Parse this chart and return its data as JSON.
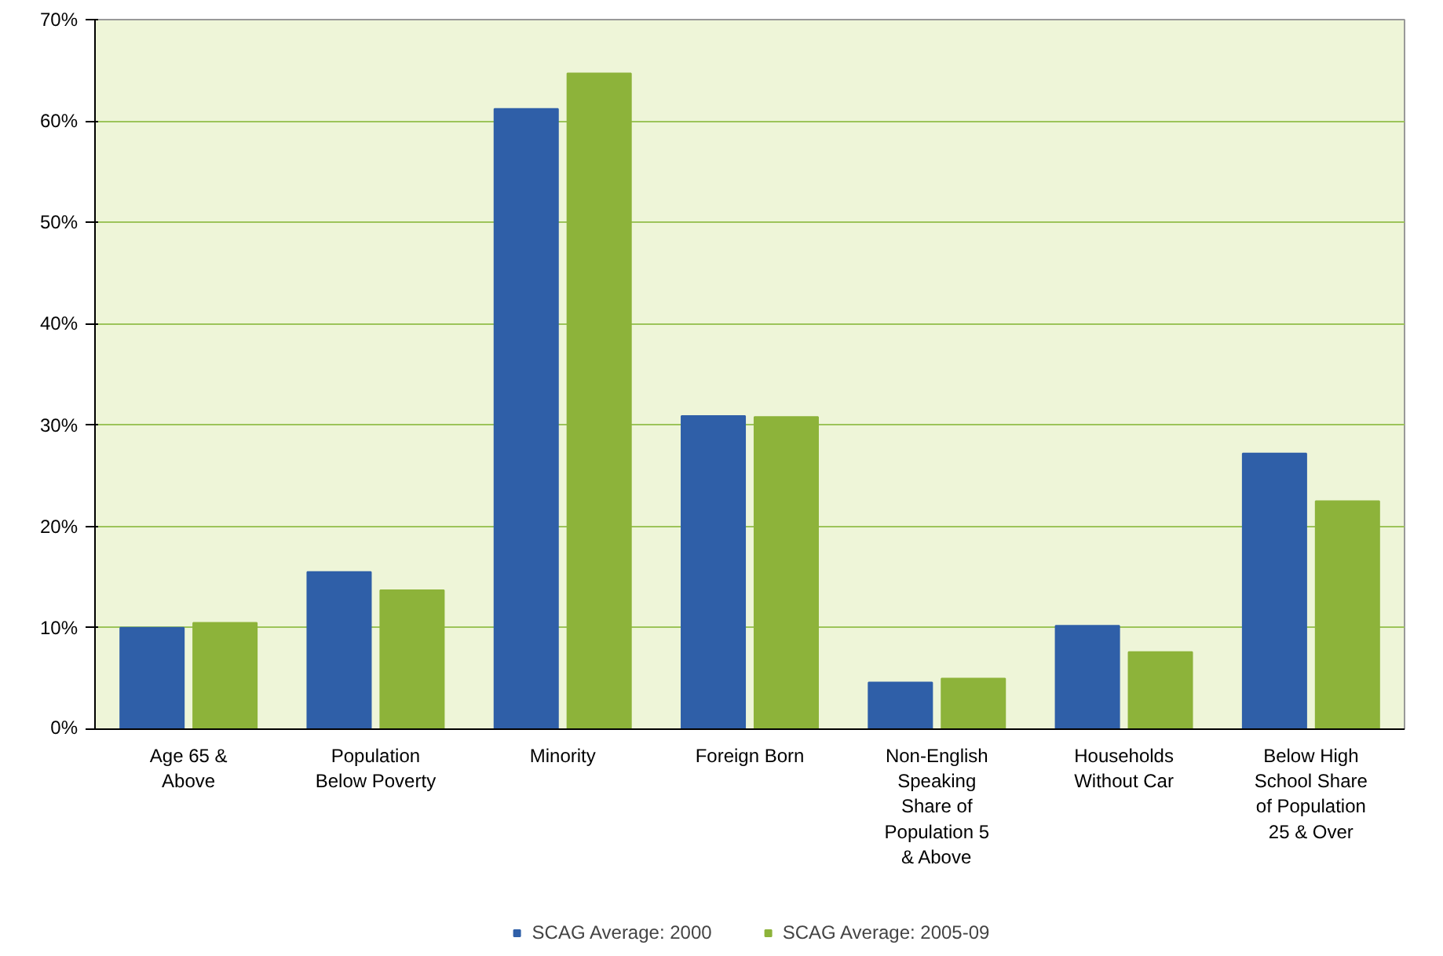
{
  "chart_data": {
    "type": "bar",
    "categories": [
      "Age 65 &\nAbove",
      "Population\nBelow Poverty",
      "Minority",
      "Foreign Born",
      "Non-English\nSpeaking\nShare of\nPopulation 5\n& Above",
      "Households\nWithout Car",
      "Below High\nSchool Share\nof Population\n25 & Over"
    ],
    "series": [
      {
        "name": "SCAG Average: 2000",
        "color": "#2f5fa8",
        "values": [
          10.0,
          15.5,
          61.2,
          30.9,
          4.6,
          10.2,
          27.2
        ]
      },
      {
        "name": "SCAG Average: 2005-09",
        "color": "#8db33a",
        "values": [
          10.5,
          13.7,
          64.7,
          30.8,
          5.0,
          7.6,
          22.5
        ]
      }
    ],
    "ylim": [
      0,
      70
    ],
    "yticks": [
      {
        "value": 0,
        "label": "0%"
      },
      {
        "value": 10,
        "label": "10%"
      },
      {
        "value": 20,
        "label": "20%"
      },
      {
        "value": 30,
        "label": "30%"
      },
      {
        "value": 40,
        "label": "40%"
      },
      {
        "value": 50,
        "label": "50%"
      },
      {
        "value": 60,
        "label": "60%"
      },
      {
        "value": 70,
        "label": "70%"
      }
    ],
    "grid": "y",
    "legend": "bottom"
  }
}
